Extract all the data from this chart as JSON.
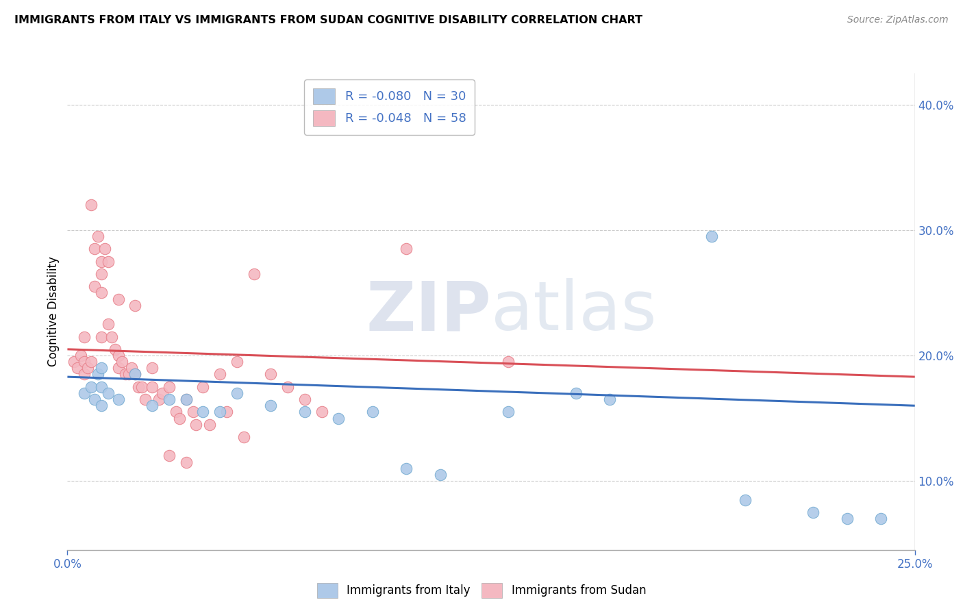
{
  "title": "IMMIGRANTS FROM ITALY VS IMMIGRANTS FROM SUDAN COGNITIVE DISABILITY CORRELATION CHART",
  "source": "Source: ZipAtlas.com",
  "ylabel": "Cognitive Disability",
  "xlim": [
    0.0,
    0.25
  ],
  "ylim": [
    0.045,
    0.425
  ],
  "yticks": [
    0.1,
    0.2,
    0.3,
    0.4
  ],
  "xticks": [
    0.0,
    0.25
  ],
  "italy_R": -0.08,
  "italy_N": 30,
  "sudan_R": -0.048,
  "sudan_N": 58,
  "italy_color": "#aec9e8",
  "italy_edge_color": "#7bafd4",
  "sudan_color": "#f4b8c1",
  "sudan_edge_color": "#e8848e",
  "italy_line_color": "#3a6fbc",
  "sudan_line_color": "#d94f57",
  "watermark_zip": "ZIP",
  "watermark_atlas": "atlas",
  "axis_color": "#4472c4",
  "grid_color": "#cccccc",
  "legend_text_color": "#4472c4",
  "italy_x": [
    0.005,
    0.007,
    0.008,
    0.009,
    0.01,
    0.01,
    0.01,
    0.012,
    0.015,
    0.02,
    0.025,
    0.03,
    0.035,
    0.04,
    0.045,
    0.05,
    0.06,
    0.07,
    0.08,
    0.09,
    0.1,
    0.11,
    0.13,
    0.15,
    0.16,
    0.19,
    0.2,
    0.22,
    0.23,
    0.24
  ],
  "italy_y": [
    0.17,
    0.175,
    0.165,
    0.185,
    0.175,
    0.19,
    0.16,
    0.17,
    0.165,
    0.185,
    0.16,
    0.165,
    0.165,
    0.155,
    0.155,
    0.17,
    0.16,
    0.155,
    0.15,
    0.155,
    0.11,
    0.105,
    0.155,
    0.17,
    0.165,
    0.295,
    0.085,
    0.075,
    0.07,
    0.07
  ],
  "sudan_x": [
    0.002,
    0.003,
    0.004,
    0.005,
    0.005,
    0.005,
    0.006,
    0.007,
    0.007,
    0.008,
    0.008,
    0.009,
    0.01,
    0.01,
    0.01,
    0.01,
    0.011,
    0.012,
    0.012,
    0.013,
    0.014,
    0.015,
    0.015,
    0.015,
    0.016,
    0.017,
    0.018,
    0.019,
    0.02,
    0.02,
    0.021,
    0.022,
    0.023,
    0.025,
    0.025,
    0.027,
    0.028,
    0.03,
    0.03,
    0.032,
    0.033,
    0.035,
    0.035,
    0.037,
    0.038,
    0.04,
    0.042,
    0.045,
    0.047,
    0.05,
    0.052,
    0.055,
    0.06,
    0.065,
    0.07,
    0.075,
    0.1,
    0.13
  ],
  "sudan_y": [
    0.195,
    0.19,
    0.2,
    0.215,
    0.195,
    0.185,
    0.19,
    0.32,
    0.195,
    0.255,
    0.285,
    0.295,
    0.275,
    0.265,
    0.25,
    0.215,
    0.285,
    0.275,
    0.225,
    0.215,
    0.205,
    0.245,
    0.2,
    0.19,
    0.195,
    0.185,
    0.185,
    0.19,
    0.185,
    0.24,
    0.175,
    0.175,
    0.165,
    0.175,
    0.19,
    0.165,
    0.17,
    0.175,
    0.12,
    0.155,
    0.15,
    0.165,
    0.115,
    0.155,
    0.145,
    0.175,
    0.145,
    0.185,
    0.155,
    0.195,
    0.135,
    0.265,
    0.185,
    0.175,
    0.165,
    0.155,
    0.285,
    0.195
  ],
  "italy_line_x0": 0.0,
  "italy_line_y0": 0.183,
  "italy_line_x1": 0.25,
  "italy_line_y1": 0.16,
  "sudan_line_x0": 0.0,
  "sudan_line_y0": 0.205,
  "sudan_line_x1": 0.25,
  "sudan_line_y1": 0.183
}
